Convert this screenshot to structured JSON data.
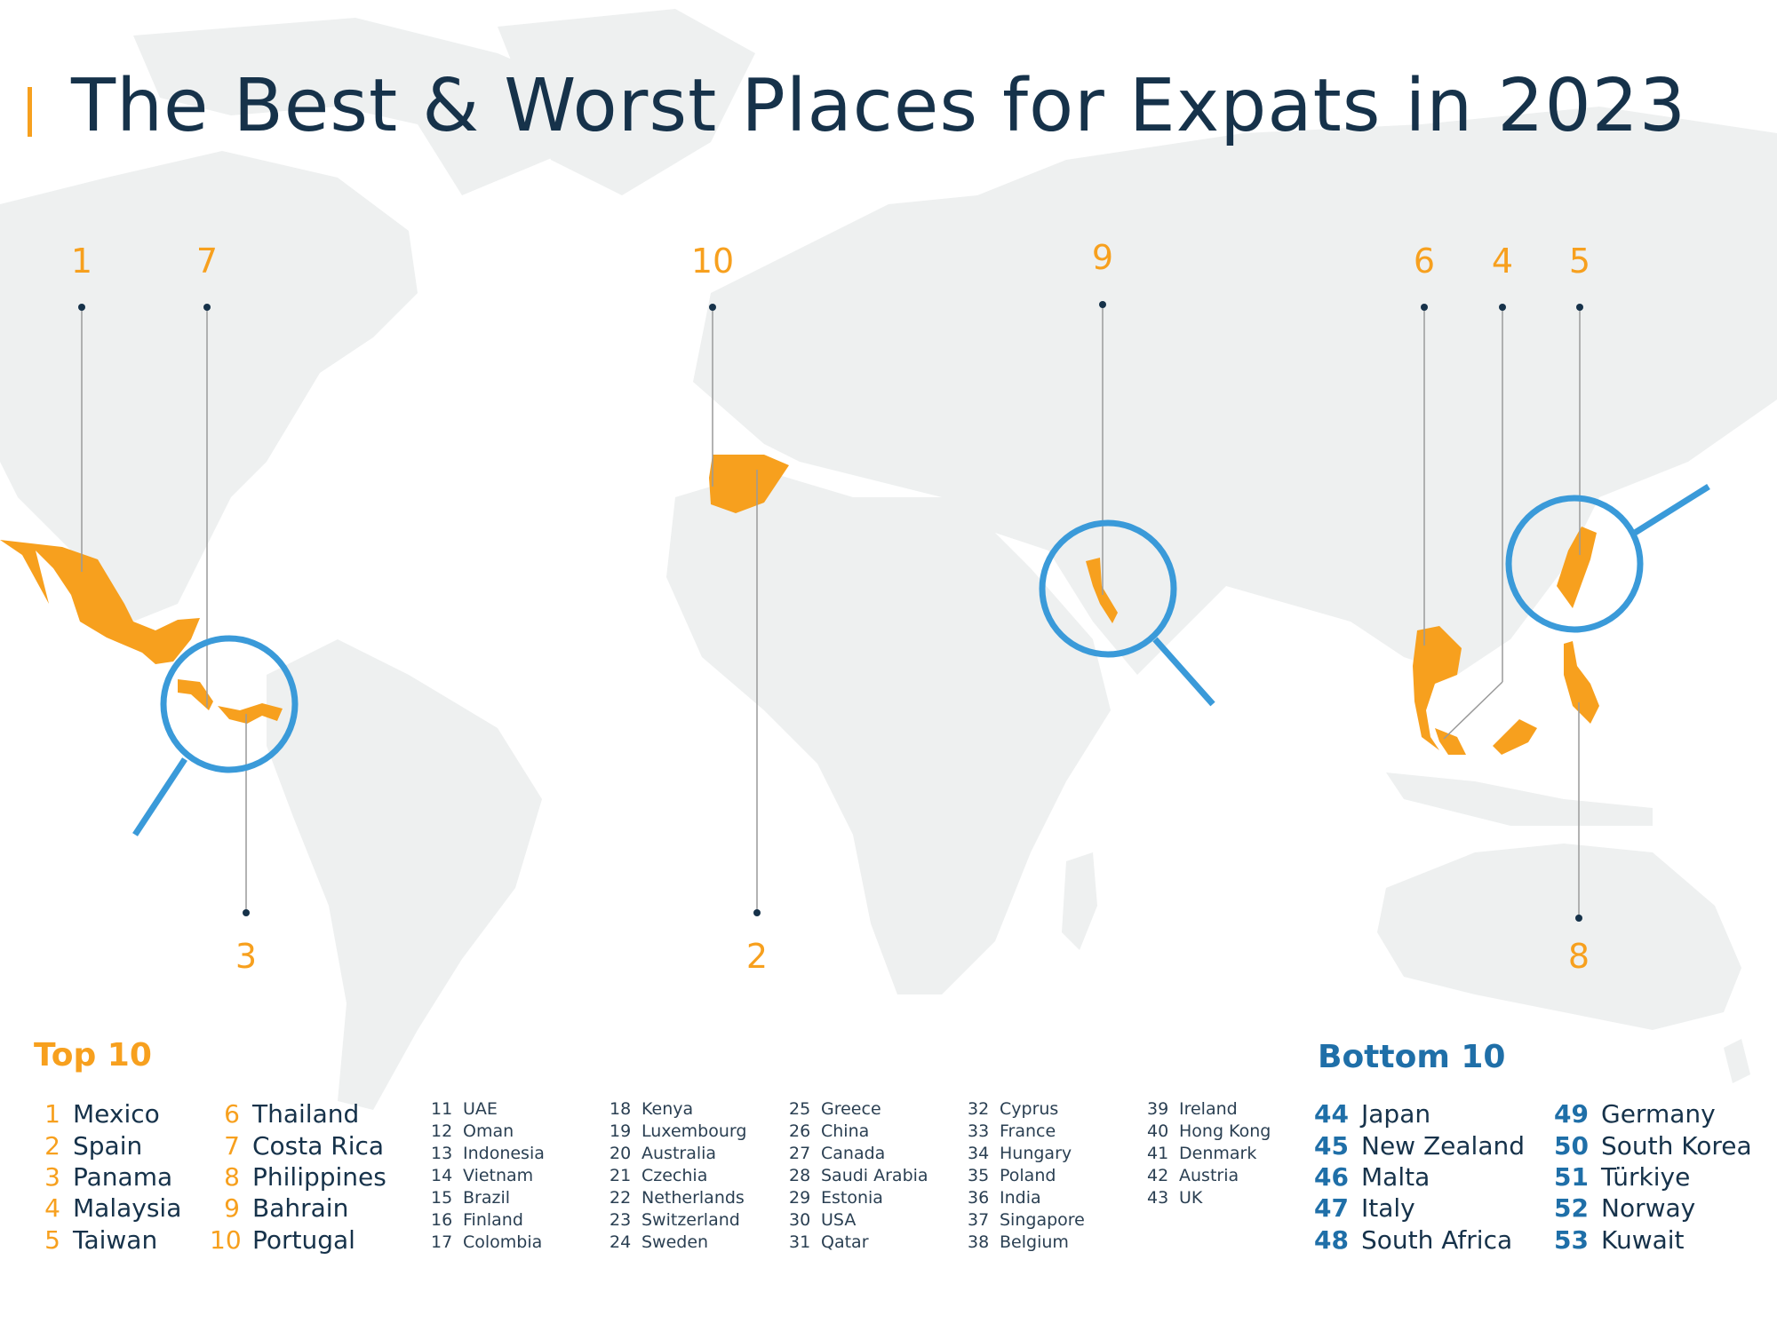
{
  "title": "The Best & Worst Places for Expats in 2023",
  "colors": {
    "title": "#16324a",
    "accent_orange": "#f7a01e",
    "magnifier_blue": "#3a9ad9",
    "bottom_blue": "#1f6fa8",
    "land": "#eef0f0"
  },
  "map_labels": [
    "1",
    "7",
    "10",
    "9",
    "6",
    "4",
    "5",
    "3",
    "2",
    "8"
  ],
  "top10": {
    "title": "Top 10",
    "items": [
      {
        "rank": "1",
        "country": "Mexico"
      },
      {
        "rank": "2",
        "country": "Spain"
      },
      {
        "rank": "3",
        "country": "Panama"
      },
      {
        "rank": "4",
        "country": "Malaysia"
      },
      {
        "rank": "5",
        "country": "Taiwan"
      },
      {
        "rank": "6",
        "country": "Thailand"
      },
      {
        "rank": "7",
        "country": "Costa Rica"
      },
      {
        "rank": "8",
        "country": "Philippines"
      },
      {
        "rank": "9",
        "country": "Bahrain"
      },
      {
        "rank": "10",
        "country": "Portugal"
      }
    ]
  },
  "middle": [
    {
      "rank": "11",
      "country": "UAE"
    },
    {
      "rank": "12",
      "country": "Oman"
    },
    {
      "rank": "13",
      "country": "Indonesia"
    },
    {
      "rank": "14",
      "country": "Vietnam"
    },
    {
      "rank": "15",
      "country": "Brazil"
    },
    {
      "rank": "16",
      "country": "Finland"
    },
    {
      "rank": "17",
      "country": "Colombia"
    },
    {
      "rank": "18",
      "country": "Kenya"
    },
    {
      "rank": "19",
      "country": "Luxembourg"
    },
    {
      "rank": "20",
      "country": "Australia"
    },
    {
      "rank": "21",
      "country": "Czechia"
    },
    {
      "rank": "22",
      "country": "Netherlands"
    },
    {
      "rank": "23",
      "country": "Switzerland"
    },
    {
      "rank": "24",
      "country": "Sweden"
    },
    {
      "rank": "25",
      "country": "Greece"
    },
    {
      "rank": "26",
      "country": "China"
    },
    {
      "rank": "27",
      "country": "Canada"
    },
    {
      "rank": "28",
      "country": "Saudi Arabia"
    },
    {
      "rank": "29",
      "country": "Estonia"
    },
    {
      "rank": "30",
      "country": "USA"
    },
    {
      "rank": "31",
      "country": "Qatar"
    },
    {
      "rank": "32",
      "country": "Cyprus"
    },
    {
      "rank": "33",
      "country": "France"
    },
    {
      "rank": "34",
      "country": "Hungary"
    },
    {
      "rank": "35",
      "country": "Poland"
    },
    {
      "rank": "36",
      "country": "India"
    },
    {
      "rank": "37",
      "country": "Singapore"
    },
    {
      "rank": "38",
      "country": "Belgium"
    },
    {
      "rank": "39",
      "country": "Ireland"
    },
    {
      "rank": "40",
      "country": "Hong Kong"
    },
    {
      "rank": "41",
      "country": "Denmark"
    },
    {
      "rank": "42",
      "country": "Austria"
    },
    {
      "rank": "43",
      "country": "UK"
    }
  ],
  "bottom10": {
    "title": "Bottom 10",
    "items": [
      {
        "rank": "44",
        "country": "Japan"
      },
      {
        "rank": "45",
        "country": "New Zealand"
      },
      {
        "rank": "46",
        "country": "Malta"
      },
      {
        "rank": "47",
        "country": "Italy"
      },
      {
        "rank": "48",
        "country": "South Africa"
      },
      {
        "rank": "49",
        "country": "Germany"
      },
      {
        "rank": "50",
        "country": "South Korea"
      },
      {
        "rank": "51",
        "country": "Türkiye"
      },
      {
        "rank": "52",
        "country": "Norway"
      },
      {
        "rank": "53",
        "country": "Kuwait"
      }
    ]
  }
}
